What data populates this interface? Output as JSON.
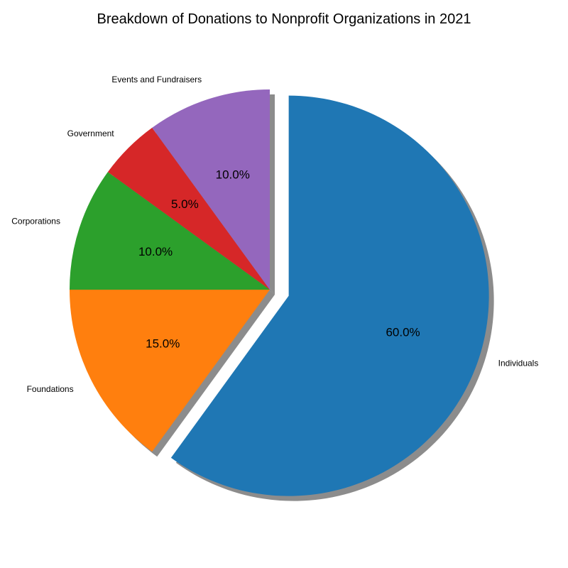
{
  "chart_data": {
    "type": "pie",
    "title": "Breakdown of Donations to Nonprofit Organizations in 2021",
    "slices": [
      {
        "label": "Individuals",
        "value": 60.0,
        "pct_label": "60.0%",
        "color": "#1f77b4",
        "exploded": true
      },
      {
        "label": "Foundations",
        "value": 15.0,
        "pct_label": "15.0%",
        "color": "#ff7f0e",
        "exploded": false
      },
      {
        "label": "Corporations",
        "value": 10.0,
        "pct_label": "10.0%",
        "color": "#2ca02c",
        "exploded": false
      },
      {
        "label": "Government",
        "value": 5.0,
        "pct_label": "5.0%",
        "color": "#d62728",
        "exploded": false
      },
      {
        "label": "Events and Fundraisers",
        "value": 10.0,
        "pct_label": "10.0%",
        "color": "#9467bd",
        "exploded": false
      }
    ],
    "start_angle_deg": 90,
    "direction": "clockwise",
    "shadow": true,
    "legend": "none"
  }
}
